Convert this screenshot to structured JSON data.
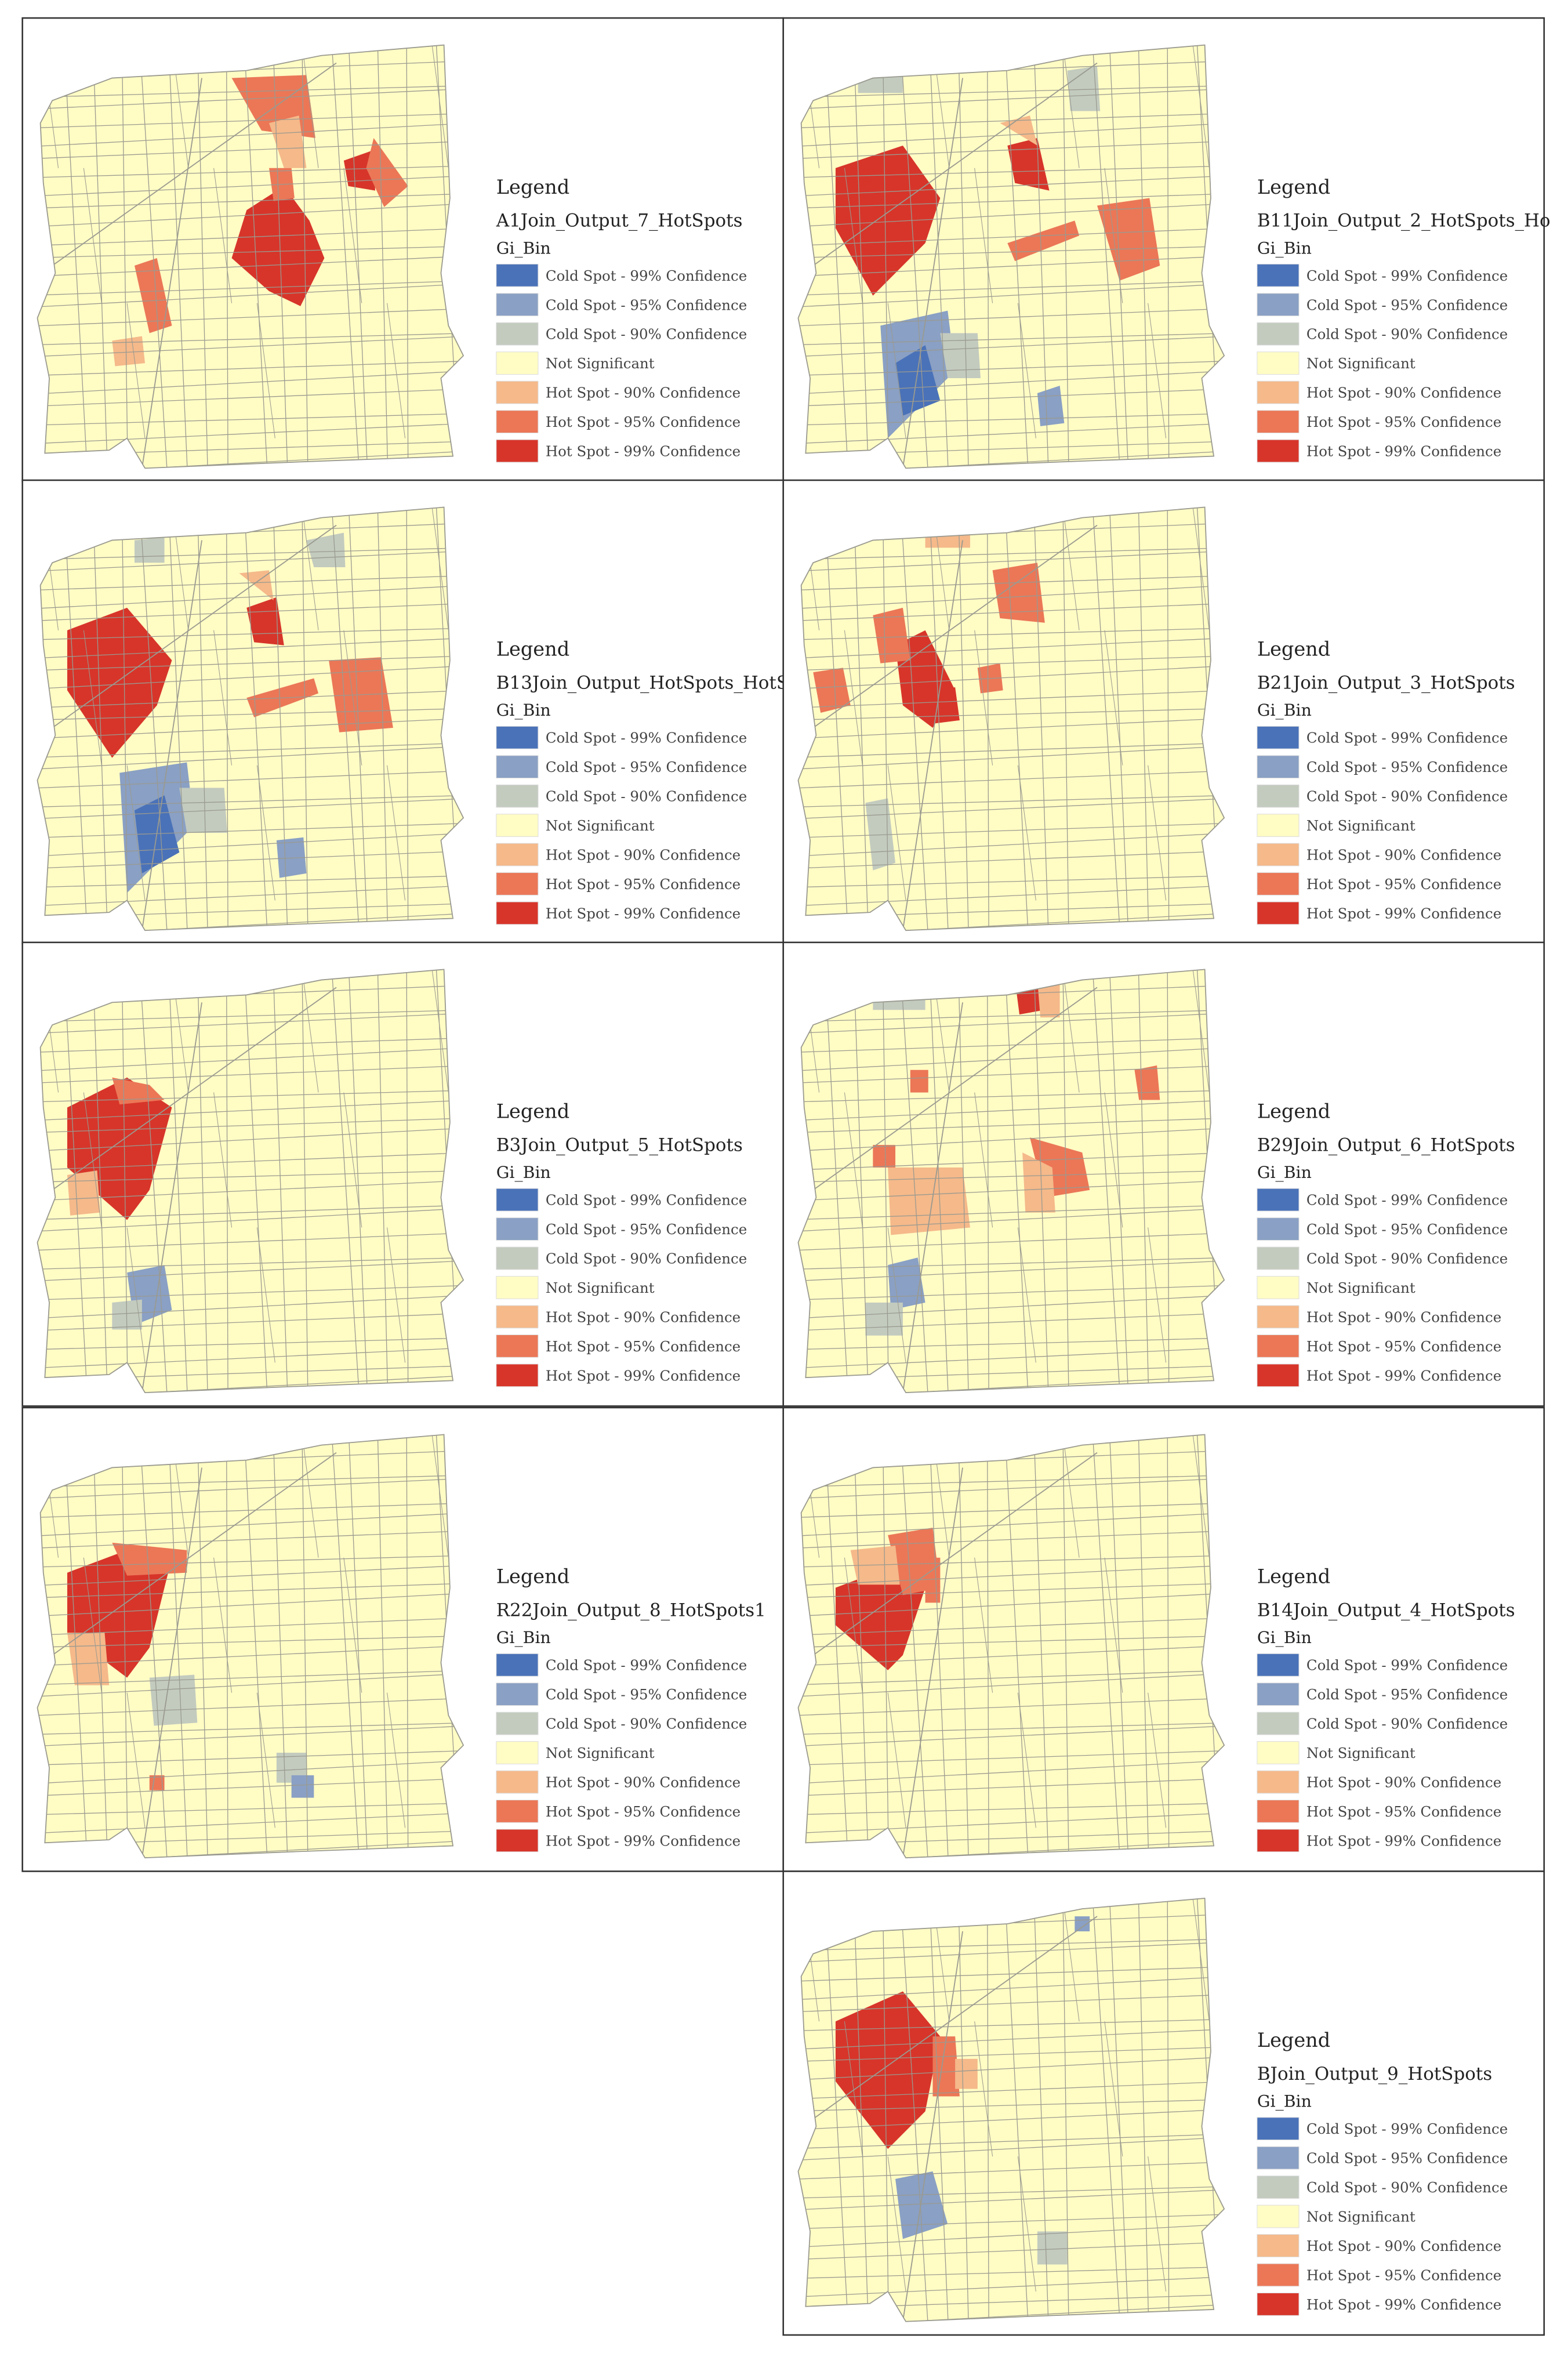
{
  "panels": [
    {
      "legend_title": "Legend",
      "layer": "A1Join_Output_7_HotSpots",
      "field": "Gi_Bin",
      "classes": [
        {
          "label": "Cold Spot - 99% Confidence",
          "color": "#4a72b8"
        },
        {
          "label": "Cold Spot - 95% Confidence",
          "color": "#8aa0c4"
        },
        {
          "label": "Cold Spot - 90% Confidence",
          "color": "#c3cbbf"
        },
        {
          "label": "Not Significant",
          "color": "#fffcc4"
        },
        {
          "label": "Hot Spot - 90% Confidence",
          "color": "#f5b98a"
        },
        {
          "label": "Hot Spot - 95% Confidence",
          "color": "#eb7757"
        },
        {
          "label": "Hot Spot - 99% Confidence",
          "color": "#d7352a"
        }
      ]
    },
    {
      "legend_title": "Legend",
      "layer": "B11Join_Output_2_HotSpots_Ho",
      "field": "Gi_Bin",
      "classes": [
        {
          "label": "Cold Spot - 99% Confidence",
          "color": "#4a72b8"
        },
        {
          "label": "Cold Spot - 95% Confidence",
          "color": "#8aa0c4"
        },
        {
          "label": "Cold Spot - 90% Confidence",
          "color": "#c3cbbf"
        },
        {
          "label": "Not Significant",
          "color": "#fffcc4"
        },
        {
          "label": "Hot Spot - 90% Confidence",
          "color": "#f5b98a"
        },
        {
          "label": "Hot Spot - 95% Confidence",
          "color": "#eb7757"
        },
        {
          "label": "Hot Spot - 99% Confidence",
          "color": "#d7352a"
        }
      ]
    },
    {
      "legend_title": "Legend",
      "layer": "B13Join_Output_HotSpots_HotS",
      "field": "Gi_Bin",
      "classes": [
        {
          "label": "Cold Spot - 99% Confidence",
          "color": "#4a72b8"
        },
        {
          "label": "Cold Spot - 95% Confidence",
          "color": "#8aa0c4"
        },
        {
          "label": "Cold Spot - 90% Confidence",
          "color": "#c3cbbf"
        },
        {
          "label": "Not Significant",
          "color": "#fffcc4"
        },
        {
          "label": "Hot Spot - 90% Confidence",
          "color": "#f5b98a"
        },
        {
          "label": "Hot Spot - 95% Confidence",
          "color": "#eb7757"
        },
        {
          "label": "Hot Spot - 99% Confidence",
          "color": "#d7352a"
        }
      ]
    },
    {
      "legend_title": "Legend",
      "layer": "B21Join_Output_3_HotSpots",
      "field": "Gi_Bin",
      "classes": [
        {
          "label": "Cold Spot - 99% Confidence",
          "color": "#4a72b8"
        },
        {
          "label": "Cold Spot - 95% Confidence",
          "color": "#8aa0c4"
        },
        {
          "label": "Cold Spot - 90% Confidence",
          "color": "#c3cbbf"
        },
        {
          "label": "Not Significant",
          "color": "#fffcc4"
        },
        {
          "label": "Hot Spot - 90% Confidence",
          "color": "#f5b98a"
        },
        {
          "label": "Hot Spot - 95% Confidence",
          "color": "#eb7757"
        },
        {
          "label": "Hot Spot - 99% Confidence",
          "color": "#d7352a"
        }
      ]
    },
    {
      "legend_title": "Legend",
      "layer": "B3Join_Output_5_HotSpots",
      "field": "Gi_Bin",
      "classes": [
        {
          "label": "Cold Spot - 99% Confidence",
          "color": "#4a72b8"
        },
        {
          "label": "Cold Spot - 95% Confidence",
          "color": "#8aa0c4"
        },
        {
          "label": "Cold Spot - 90% Confidence",
          "color": "#c3cbbf"
        },
        {
          "label": "Not Significant",
          "color": "#fffcc4"
        },
        {
          "label": "Hot Spot - 90% Confidence",
          "color": "#f5b98a"
        },
        {
          "label": "Hot Spot - 95% Confidence",
          "color": "#eb7757"
        },
        {
          "label": "Hot Spot - 99% Confidence",
          "color": "#d7352a"
        }
      ]
    },
    {
      "legend_title": "Legend",
      "layer": "B29Join_Output_6_HotSpots",
      "field": "Gi_Bin",
      "classes": [
        {
          "label": "Cold Spot - 99% Confidence",
          "color": "#4a72b8"
        },
        {
          "label": "Cold Spot - 95% Confidence",
          "color": "#8aa0c4"
        },
        {
          "label": "Cold Spot - 90% Confidence",
          "color": "#c3cbbf"
        },
        {
          "label": "Not Significant",
          "color": "#fffcc4"
        },
        {
          "label": "Hot Spot - 90% Confidence",
          "color": "#f5b98a"
        },
        {
          "label": "Hot Spot - 95% Confidence",
          "color": "#eb7757"
        },
        {
          "label": "Hot Spot - 99% Confidence",
          "color": "#d7352a"
        }
      ]
    },
    {
      "legend_title": "Legend",
      "layer": "R22Join_Output_8_HotSpots1",
      "field": "Gi_Bin",
      "classes": [
        {
          "label": "Cold Spot - 99% Confidence",
          "color": "#4a72b8"
        },
        {
          "label": "Cold Spot - 95% Confidence",
          "color": "#8aa0c4"
        },
        {
          "label": "Cold Spot - 90% Confidence",
          "color": "#c3cbbf"
        },
        {
          "label": "Not Significant",
          "color": "#fffcc4"
        },
        {
          "label": "Hot Spot - 90% Confidence",
          "color": "#f5b98a"
        },
        {
          "label": "Hot Spot - 95% Confidence",
          "color": "#eb7757"
        },
        {
          "label": "Hot Spot - 99% Confidence",
          "color": "#d7352a"
        }
      ]
    },
    {
      "legend_title": "Legend",
      "layer": "B14Join_Output_4_HotSpots",
      "field": "Gi_Bin",
      "classes": [
        {
          "label": "Cold Spot - 99% Confidence",
          "color": "#4a72b8"
        },
        {
          "label": "Cold Spot - 95% Confidence",
          "color": "#8aa0c4"
        },
        {
          "label": "Cold Spot - 90% Confidence",
          "color": "#c3cbbf"
        },
        {
          "label": "Not Significant",
          "color": "#fffcc4"
        },
        {
          "label": "Hot Spot - 90% Confidence",
          "color": "#f5b98a"
        },
        {
          "label": "Hot Spot - 95% Confidence",
          "color": "#eb7757"
        },
        {
          "label": "Hot Spot - 99% Confidence",
          "color": "#d7352a"
        }
      ]
    },
    {
      "legend_title": "Legend",
      "layer": "BJoin_Output_9_HotSpots",
      "field": "Gi_Bin",
      "classes": [
        {
          "label": "Cold Spot - 99% Confidence",
          "color": "#4a72b8"
        },
        {
          "label": "Cold Spot - 95% Confidence",
          "color": "#8aa0c4"
        },
        {
          "label": "Cold Spot - 90% Confidence",
          "color": "#c3cbbf"
        },
        {
          "label": "Not Significant",
          "color": "#fffcc4"
        },
        {
          "label": "Hot Spot - 90% Confidence",
          "color": "#f5b98a"
        },
        {
          "label": "Hot Spot - 95% Confidence",
          "color": "#eb7757"
        },
        {
          "label": "Hot Spot - 99% Confidence",
          "color": "#d7352a"
        }
      ]
    }
  ]
}
